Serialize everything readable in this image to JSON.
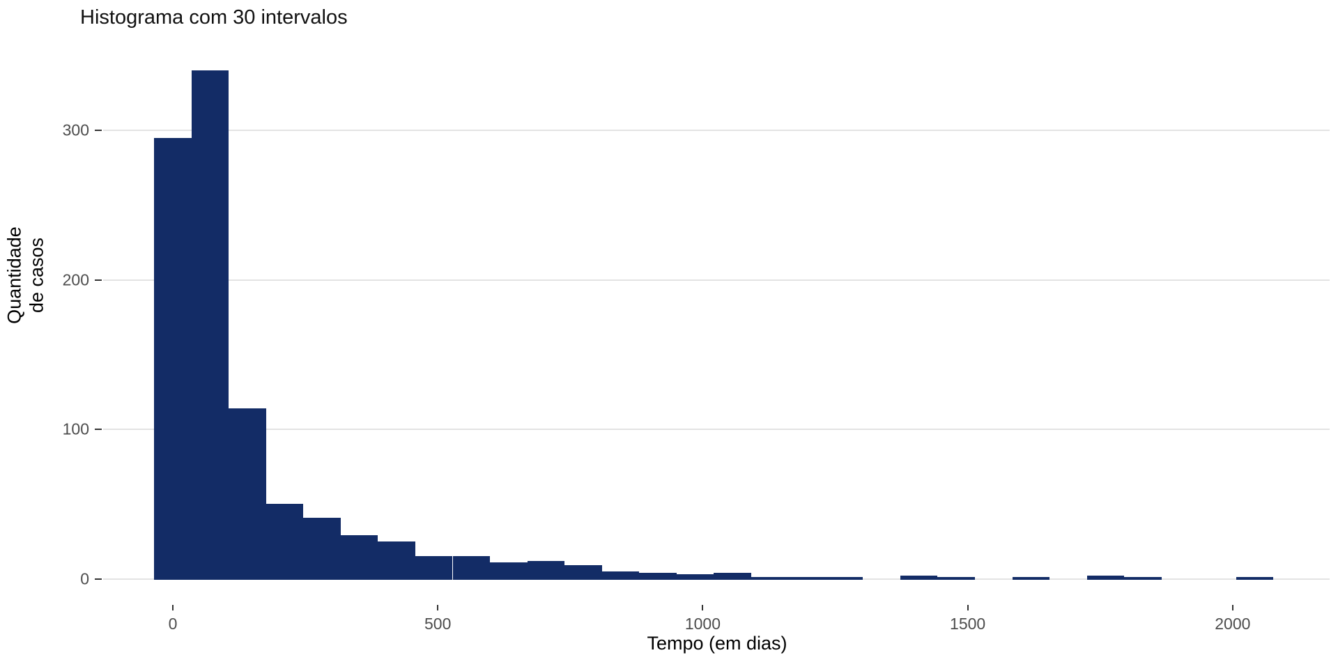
{
  "title": "Histograma com 30 intervalos",
  "chart_data": {
    "type": "bar",
    "subtype": "histogram",
    "title": "Histograma com 30 intervalos",
    "xlabel": "Tempo (em dias)",
    "ylabel": "Quantidade\nde casos",
    "ylabel_lines": [
      "Quantidade",
      "de casos"
    ],
    "n_bins": 30,
    "binwidth_days": 70.4,
    "bin_centers": [
      0,
      70.4,
      140.8,
      211.2,
      281.6,
      352,
      422.4,
      492.8,
      563.2,
      633.6,
      704,
      774.4,
      844.8,
      915.2,
      985.6,
      1056,
      1126.4,
      1196.8,
      1267.2,
      1337.6,
      1408,
      1478.4,
      1548.8,
      1619.2,
      1689.6,
      1760,
      1830.4,
      1900.8,
      1971.2,
      2041.6
    ],
    "values": [
      295,
      340,
      114,
      50,
      41,
      29,
      25,
      15,
      15,
      11,
      12,
      9,
      5,
      4,
      3,
      4,
      1,
      1,
      1,
      0,
      2,
      1,
      0,
      1,
      0,
      2,
      1,
      0,
      0,
      1
    ],
    "x_ticks": [
      0,
      500,
      1000,
      1500,
      2000
    ],
    "y_ticks": [
      0,
      100,
      200,
      300
    ],
    "xlim_days": [
      -131,
      2186
    ],
    "ylim": [
      0,
      357
    ],
    "grid": "major-horizontal-only",
    "legend": "none",
    "bar_color": "#132c66",
    "grid_color": "#e3e3e3",
    "tick_mark_color": "#333333",
    "tick_label_color": "#4d4d4d",
    "axis_title_color": "#000000",
    "background_color": "#ffffff"
  }
}
